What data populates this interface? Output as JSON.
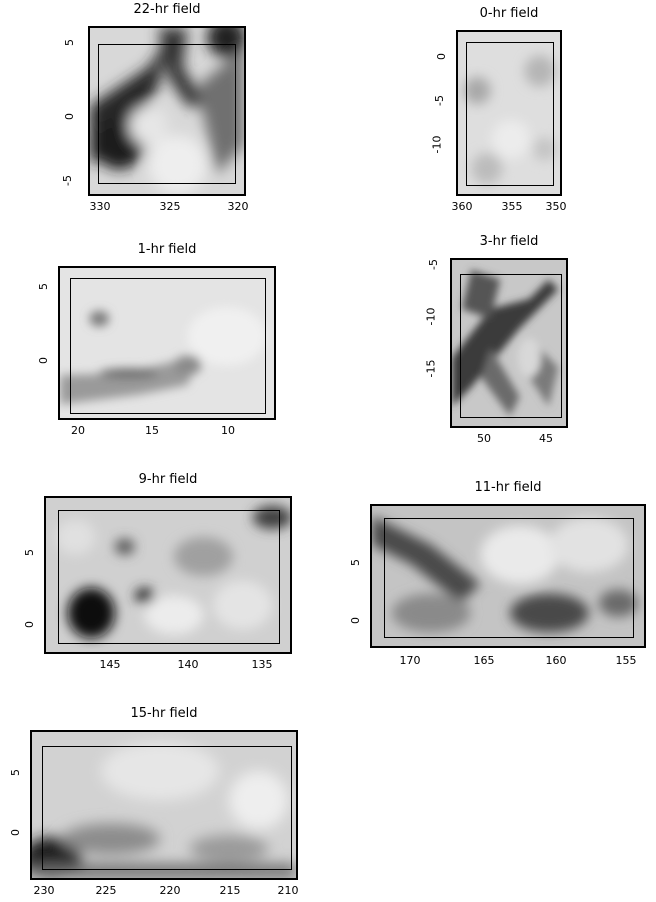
{
  "panels": [
    {
      "id": "22hr",
      "title": "22-hr field",
      "x_ticks": [
        "330",
        "325",
        "320"
      ],
      "y_ticks": [
        "5",
        "0",
        "-5"
      ]
    },
    {
      "id": "0hr",
      "title": "0-hr field",
      "x_ticks": [
        "360",
        "355",
        "350"
      ],
      "y_ticks": [
        "0",
        "-5",
        "-10"
      ]
    },
    {
      "id": "1hr",
      "title": "1-hr field",
      "x_ticks": [
        "20",
        "15",
        "10"
      ],
      "y_ticks": [
        "5",
        "0"
      ]
    },
    {
      "id": "3hr",
      "title": "3-hr field",
      "x_ticks": [
        "50",
        "45"
      ],
      "y_ticks": [
        "-5",
        "-10",
        "-15"
      ]
    },
    {
      "id": "9hr",
      "title": "9-hr field",
      "x_ticks": [
        "145",
        "140",
        "135"
      ],
      "y_ticks": [
        "5",
        "0"
      ]
    },
    {
      "id": "11hr",
      "title": "11-hr field",
      "x_ticks": [
        "170",
        "165",
        "160",
        "155"
      ],
      "y_ticks": [
        "5",
        "0"
      ]
    },
    {
      "id": "15hr",
      "title": "15-hr field",
      "x_ticks": [
        "230",
        "225",
        "220",
        "215",
        "210"
      ],
      "y_ticks": [
        "5",
        "0"
      ]
    }
  ]
}
